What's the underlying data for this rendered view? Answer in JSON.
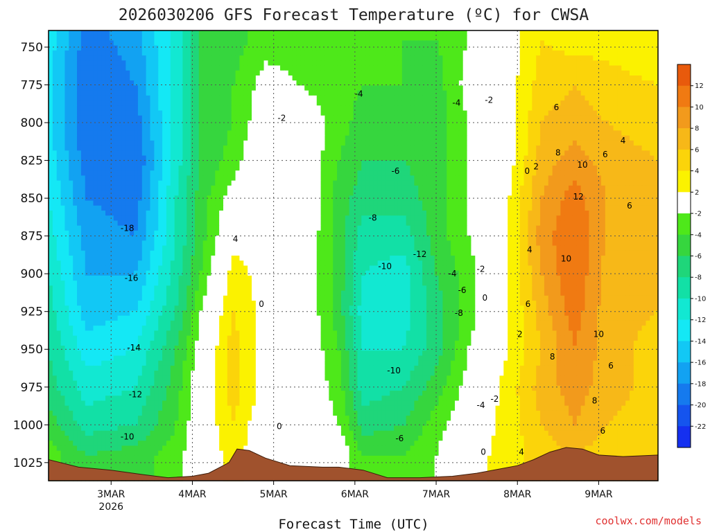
{
  "chart_data": {
    "type": "heatmap",
    "title": "2026030206 GFS Forecast Temperature (ºC) for CWSA",
    "xlabel": "Forecast Time (UTC)",
    "ylabel": "",
    "credit": "coolwx.com/models",
    "x_range_days": [
      2.23,
      9.73
    ],
    "x_ticks": [
      {
        "day": 3,
        "label": "3MAR",
        "sublabel": "2026"
      },
      {
        "day": 4,
        "label": "4MAR",
        "sublabel": ""
      },
      {
        "day": 5,
        "label": "5MAR",
        "sublabel": ""
      },
      {
        "day": 6,
        "label": "6MAR",
        "sublabel": ""
      },
      {
        "day": 7,
        "label": "7MAR",
        "sublabel": ""
      },
      {
        "day": 8,
        "label": "8MAR",
        "sublabel": ""
      },
      {
        "day": 9,
        "label": "9MAR",
        "sublabel": ""
      }
    ],
    "y_axis": {
      "scale": "pressure_hPa",
      "inverted": true,
      "range": [
        1037,
        739
      ],
      "ticks": [
        "750",
        "775",
        "800",
        "825",
        "850",
        "875",
        "900",
        "925",
        "950",
        "975",
        "1000",
        "1025"
      ]
    },
    "grid": true,
    "colorbar": {
      "placement": "right",
      "bins": [
        {
          "lo": 12,
          "hi": 14,
          "color": "#e85a0c"
        },
        {
          "lo": 10,
          "hi": 12,
          "color": "#f07a12"
        },
        {
          "lo": 8,
          "hi": 10,
          "color": "#f29a1c"
        },
        {
          "lo": 6,
          "hi": 8,
          "color": "#f7b818"
        },
        {
          "lo": 4,
          "hi": 6,
          "color": "#fbd40a"
        },
        {
          "lo": 2,
          "hi": 4,
          "color": "#fbf200"
        },
        {
          "lo": -2,
          "hi": 2,
          "color": "#ffffff"
        },
        {
          "lo": -4,
          "hi": -2,
          "color": "#4ee81a"
        },
        {
          "lo": -6,
          "hi": -4,
          "color": "#36d63e"
        },
        {
          "lo": -8,
          "hi": -6,
          "color": "#1fd67a"
        },
        {
          "lo": -10,
          "hi": -8,
          "color": "#12e0a6"
        },
        {
          "lo": -12,
          "hi": -10,
          "color": "#12e8d2"
        },
        {
          "lo": -14,
          "hi": -12,
          "color": "#14e8f5"
        },
        {
          "lo": -16,
          "hi": -14,
          "color": "#12c8f5"
        },
        {
          "lo": -18,
          "hi": -16,
          "color": "#12a2f2"
        },
        {
          "lo": -20,
          "hi": -18,
          "color": "#157aee"
        },
        {
          "lo": -22,
          "hi": -20,
          "color": "#1554ee"
        },
        {
          "lo": -24,
          "hi": -22,
          "color": "#1530f0"
        }
      ],
      "tick_labels": [
        "12",
        "10",
        "8",
        "6",
        "4",
        "2",
        "-2",
        "-4",
        "-6",
        "-8",
        "-10",
        "-12",
        "-14",
        "-16",
        "-18",
        "-20",
        "-22"
      ]
    },
    "temperature_field": {
      "day": [
        2.23,
        2.7,
        3.3,
        3.8,
        4.1,
        4.5,
        4.9,
        5.3,
        5.8,
        6.1,
        6.6,
        7.0,
        7.4,
        7.9,
        8.3,
        8.7,
        9.1,
        9.73
      ],
      "pressure": [
        745,
        775,
        800,
        825,
        850,
        875,
        900,
        925,
        950,
        975,
        1000,
        1020
      ],
      "temp": [
        [
          -13,
          -19,
          -17,
          -11,
          -6,
          -5,
          -3,
          -3,
          -4,
          -4,
          -4,
          -4,
          -2,
          1,
          4,
          3,
          3,
          2
        ],
        [
          -13,
          -20,
          -18,
          -11,
          -6,
          -4,
          -1,
          -2,
          -3,
          -4,
          -4,
          -5,
          -1,
          1,
          5,
          6,
          5,
          4
        ],
        [
          -13,
          -20,
          -19,
          -11,
          -6,
          -4,
          0,
          0,
          -3,
          -5,
          -5,
          -5,
          -2,
          1,
          6,
          7,
          6,
          5
        ],
        [
          -13,
          -19,
          -20,
          -11,
          -6,
          -3,
          1,
          1,
          -4,
          -6,
          -6,
          -5,
          -2,
          1,
          7,
          9,
          7,
          6
        ],
        [
          -12,
          -18,
          -19,
          -10,
          -5,
          -1,
          1,
          2,
          -5,
          -7,
          -7,
          -5,
          -2,
          2,
          8,
          11,
          8,
          6
        ],
        [
          -11,
          -17,
          -18,
          -10,
          -5,
          1,
          1,
          1,
          -5,
          -9,
          -9,
          -5,
          -2,
          2,
          9,
          12,
          8,
          6
        ],
        [
          -10,
          -16,
          -16,
          -9,
          -4,
          3,
          1,
          1,
          -5,
          -10,
          -11,
          -6,
          -3,
          2,
          8,
          12,
          7,
          6
        ],
        [
          -9,
          -15,
          -14,
          -8,
          -2,
          4,
          1,
          1,
          -5,
          -11,
          -11,
          -7,
          -3,
          2,
          7,
          11,
          7,
          6
        ],
        [
          -8,
          -13,
          -12,
          -6,
          -1,
          5,
          1,
          1,
          -4,
          -10,
          -10,
          -7,
          -2,
          2,
          6,
          10,
          7,
          5
        ],
        [
          -7,
          -11,
          -10,
          -5,
          0,
          5,
          1,
          1,
          -3,
          -9,
          -8,
          -5,
          -1,
          3,
          7,
          9,
          7,
          5
        ],
        [
          -5,
          -9,
          -8,
          -4,
          0,
          4,
          0,
          0,
          -2,
          -7,
          -6,
          -3,
          0,
          3,
          6,
          8,
          6,
          5
        ],
        [
          -3,
          -6,
          -5,
          -3,
          0,
          3,
          0,
          1,
          0,
          -4,
          -4,
          -2,
          1,
          3,
          5,
          6,
          5,
          4
        ]
      ]
    },
    "contour_labels": [
      {
        "day": 3.2,
        "p": 870,
        "text": "-18"
      },
      {
        "day": 3.25,
        "p": 903,
        "text": "-16"
      },
      {
        "day": 3.28,
        "p": 949,
        "text": "-14"
      },
      {
        "day": 3.3,
        "p": 980,
        "text": "-12"
      },
      {
        "day": 3.2,
        "p": 1008,
        "text": "-10"
      },
      {
        "day": 4.53,
        "p": 877,
        "text": "4"
      },
      {
        "day": 4.85,
        "p": 920,
        "text": "0"
      },
      {
        "day": 5.1,
        "p": 797,
        "text": "-2"
      },
      {
        "day": 5.07,
        "p": 1001,
        "text": "0"
      },
      {
        "day": 6.05,
        "p": 781,
        "text": "-4"
      },
      {
        "day": 6.5,
        "p": 832,
        "text": "-6"
      },
      {
        "day": 6.22,
        "p": 863,
        "text": "-8"
      },
      {
        "day": 6.37,
        "p": 895,
        "text": "-10"
      },
      {
        "day": 6.8,
        "p": 887,
        "text": "-12"
      },
      {
        "day": 6.48,
        "p": 964,
        "text": "-10"
      },
      {
        "day": 6.55,
        "p": 1009,
        "text": "-6"
      },
      {
        "day": 7.2,
        "p": 900,
        "text": "-4"
      },
      {
        "day": 7.32,
        "p": 911,
        "text": "-6"
      },
      {
        "day": 7.28,
        "p": 926,
        "text": "-8"
      },
      {
        "day": 7.55,
        "p": 897,
        "text": "-2"
      },
      {
        "day": 7.6,
        "p": 916,
        "text": "0"
      },
      {
        "day": 7.25,
        "p": 787,
        "text": "-4"
      },
      {
        "day": 7.65,
        "p": 785,
        "text": "-2"
      },
      {
        "day": 7.55,
        "p": 987,
        "text": "-4"
      },
      {
        "day": 7.72,
        "p": 983,
        "text": "-2"
      },
      {
        "day": 7.58,
        "p": 1018,
        "text": "0"
      },
      {
        "day": 8.03,
        "p": 940,
        "text": "2"
      },
      {
        "day": 8.15,
        "p": 884,
        "text": "4"
      },
      {
        "day": 8.13,
        "p": 920,
        "text": "6"
      },
      {
        "day": 8.23,
        "p": 829,
        "text": "2"
      },
      {
        "day": 8.12,
        "p": 832,
        "text": "0"
      },
      {
        "day": 8.48,
        "p": 790,
        "text": "6"
      },
      {
        "day": 8.5,
        "p": 820,
        "text": "8"
      },
      {
        "day": 8.8,
        "p": 828,
        "text": "10"
      },
      {
        "day": 8.75,
        "p": 849,
        "text": "12"
      },
      {
        "day": 8.6,
        "p": 890,
        "text": "10"
      },
      {
        "day": 8.43,
        "p": 955,
        "text": "8"
      },
      {
        "day": 9.0,
        "p": 940,
        "text": "10"
      },
      {
        "day": 8.95,
        "p": 984,
        "text": "8"
      },
      {
        "day": 9.08,
        "p": 821,
        "text": "6"
      },
      {
        "day": 9.3,
        "p": 812,
        "text": "4"
      },
      {
        "day": 9.38,
        "p": 855,
        "text": "6"
      },
      {
        "day": 9.15,
        "p": 961,
        "text": "6"
      },
      {
        "day": 9.05,
        "p": 1004,
        "text": "6"
      },
      {
        "day": 8.05,
        "p": 1018,
        "text": "4"
      }
    ],
    "terrain": {
      "color": "#a0522d",
      "day": [
        2.23,
        2.6,
        3.0,
        3.4,
        3.7,
        4.0,
        4.2,
        4.45,
        4.55,
        4.7,
        4.9,
        5.2,
        5.6,
        5.8,
        6.1,
        6.4,
        6.8,
        7.2,
        7.5,
        7.8,
        8.0,
        8.2,
        8.4,
        8.6,
        8.8,
        9.0,
        9.3,
        9.73
      ],
      "surface_p": [
        1023,
        1028,
        1030,
        1033,
        1035,
        1034,
        1032,
        1025,
        1016,
        1017,
        1022,
        1027,
        1028,
        1028,
        1030,
        1035,
        1035,
        1034,
        1032,
        1029,
        1027,
        1023,
        1018,
        1015,
        1016,
        1020,
        1021,
        1020
      ]
    }
  }
}
